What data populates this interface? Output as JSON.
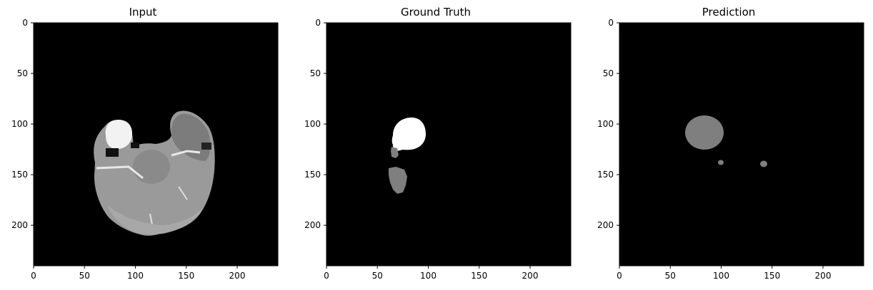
{
  "figure": {
    "axis_ticks": {
      "x": [
        "0",
        "50",
        "100",
        "150",
        "200"
      ],
      "y": [
        "0",
        "50",
        "100",
        "150",
        "200"
      ],
      "x_values": [
        0,
        50,
        100,
        150,
        200
      ],
      "y_values": [
        0,
        50,
        100,
        150,
        200
      ],
      "range": [
        0,
        240
      ]
    },
    "panels": [
      {
        "title": "Input",
        "kind": "brain-mri-slice"
      },
      {
        "title": "Ground Truth",
        "kind": "segmentation-mask"
      },
      {
        "title": "Prediction",
        "kind": "segmentation-mask"
      }
    ],
    "colors": {
      "background": "#000000",
      "mask_white": "#ffffff",
      "mask_gray": "#7f7f7f",
      "tissue_gray": "#9a9a9a"
    }
  }
}
